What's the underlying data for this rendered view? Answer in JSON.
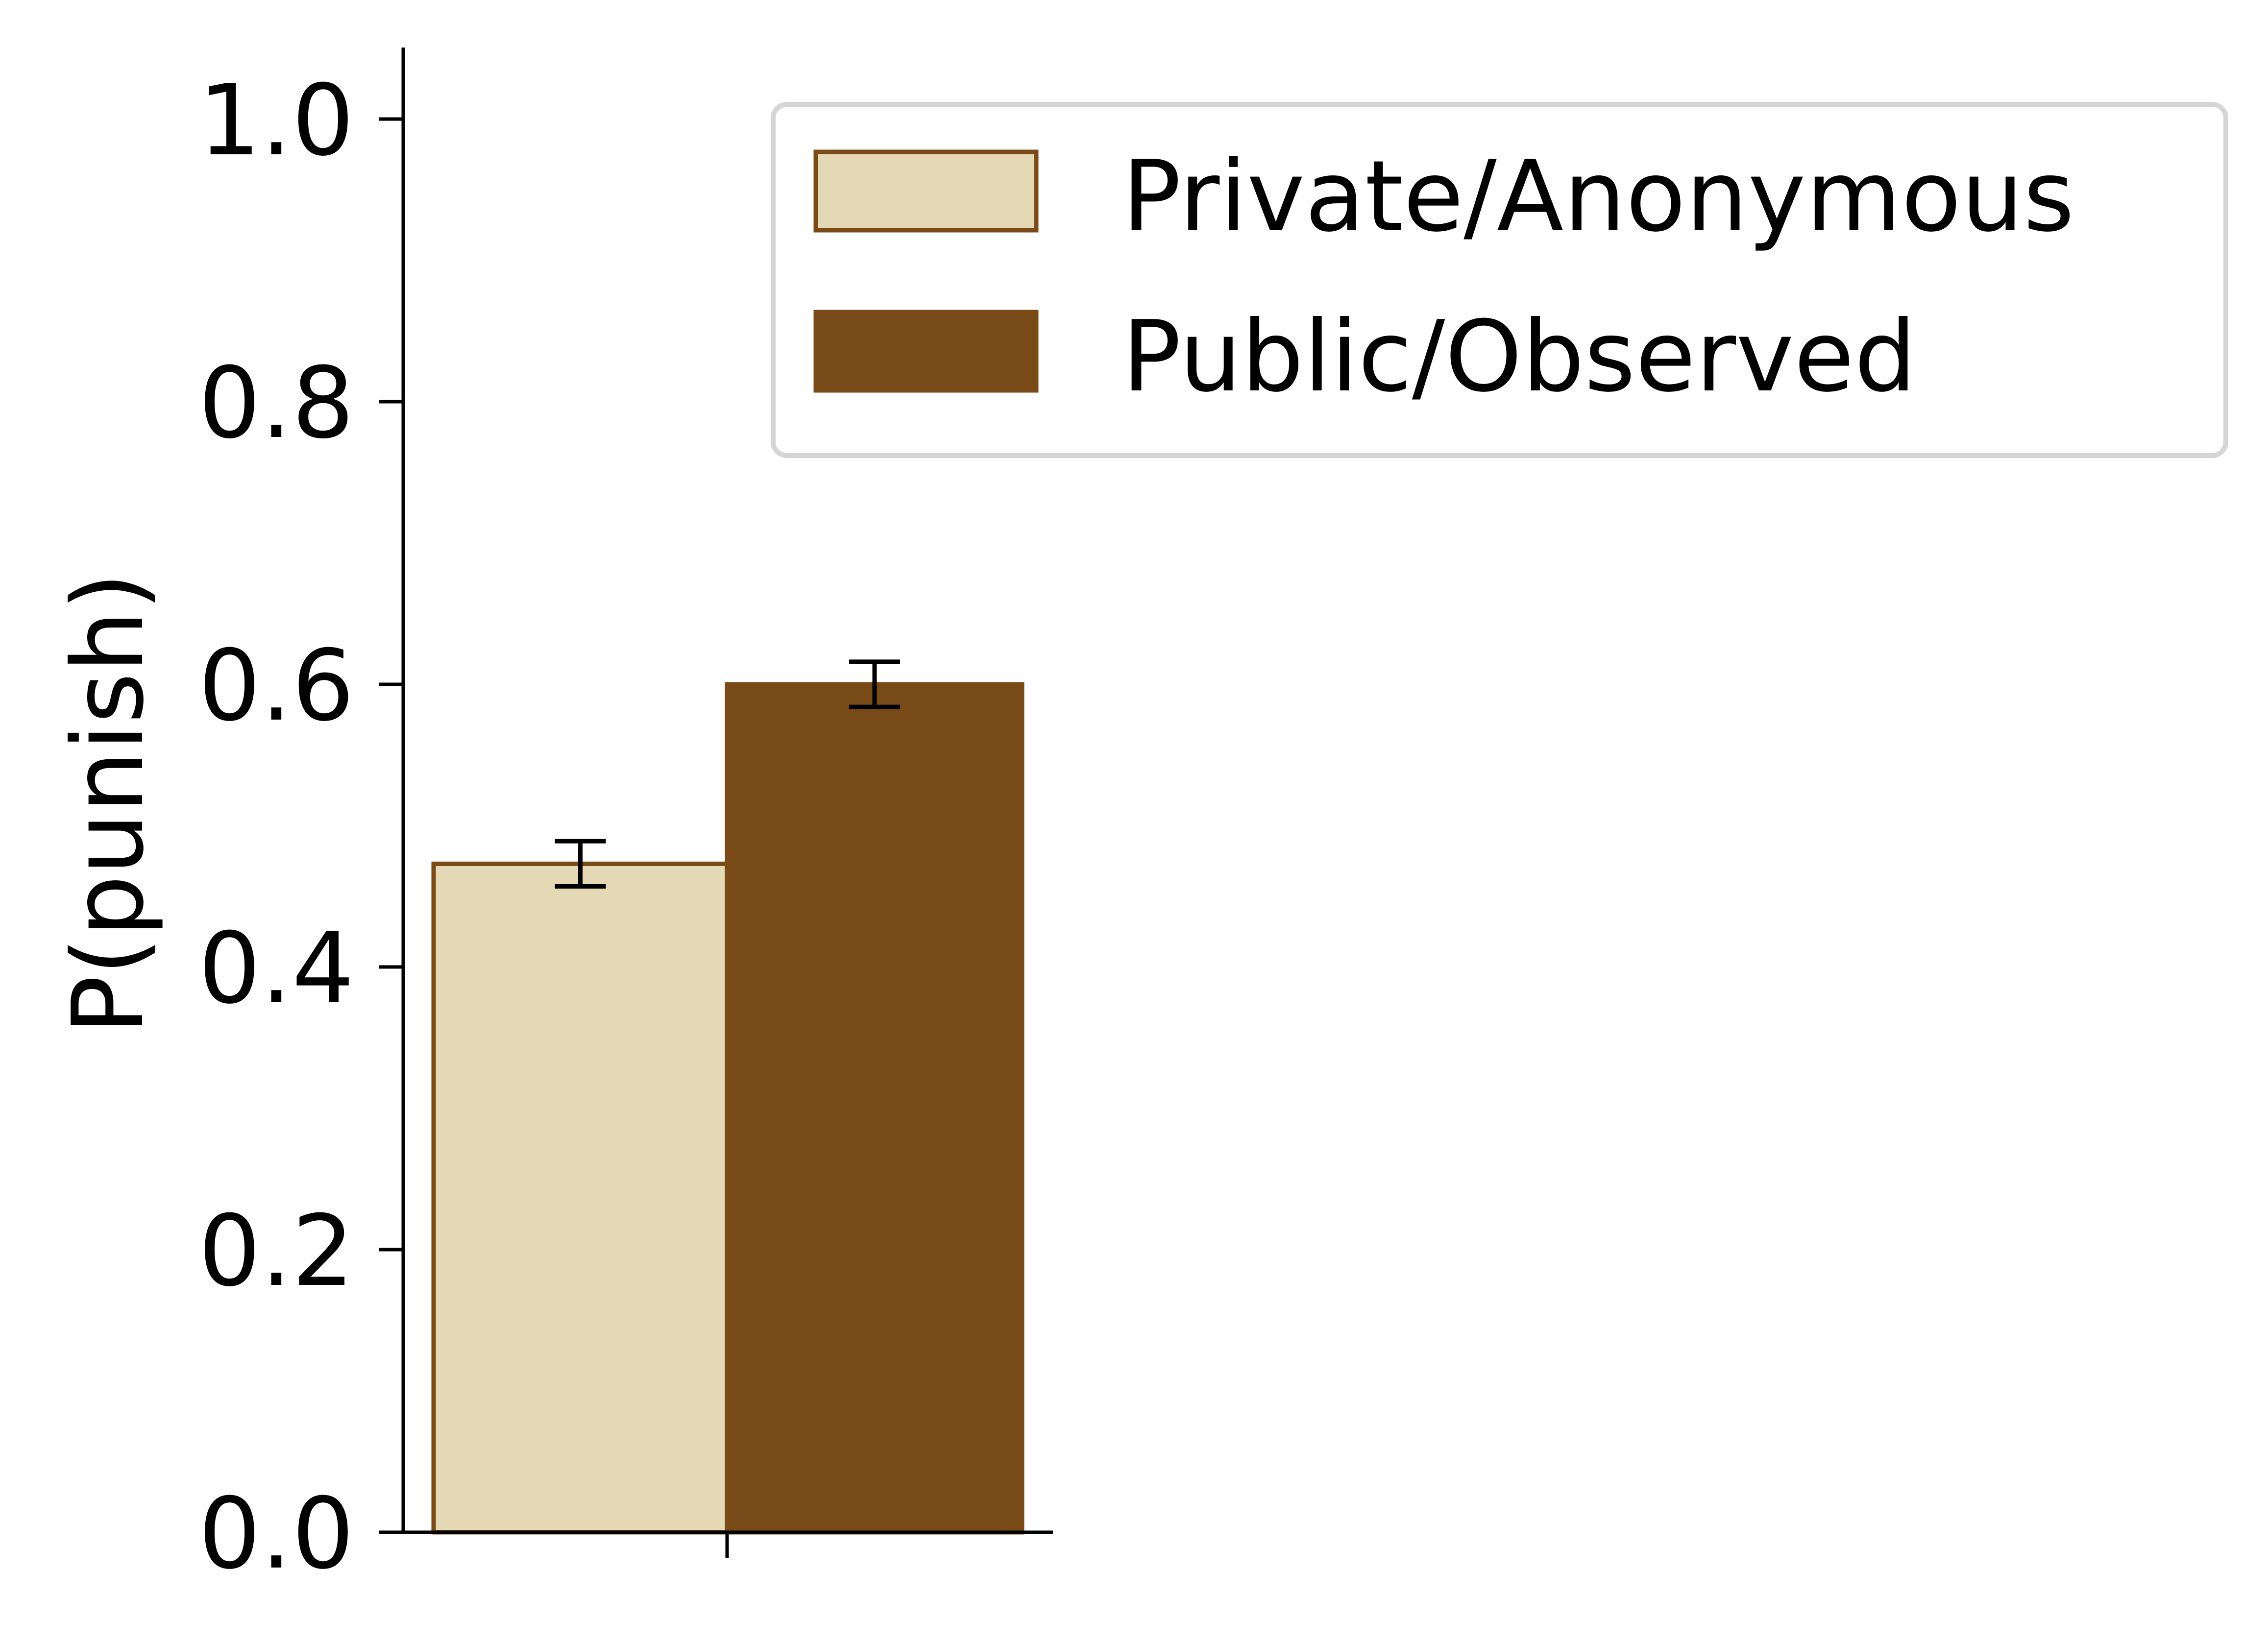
{
  "chart_data": {
    "type": "bar",
    "title": "",
    "xlabel": "",
    "ylabel": "P(punish)",
    "categories": [
      ""
    ],
    "series": [
      {
        "name": "Private/Anonymous",
        "values": [
          0.473
        ],
        "error": [
          0.016
        ],
        "color": "#e5d8b5",
        "edge_color": "#7a4b17"
      },
      {
        "name": "Public/Observed",
        "values": [
          0.6
        ],
        "error": [
          0.016
        ],
        "color": "#774a18",
        "edge_color": "#7a4b17"
      }
    ],
    "ylim": [
      0,
      1.05
    ],
    "yticks": [
      0.0,
      0.2,
      0.4,
      0.6,
      0.8,
      1.0
    ],
    "ytick_labels": [
      "0.0",
      "0.2",
      "0.4",
      "0.6",
      "0.8",
      "1.0"
    ],
    "grid": false,
    "legend": {
      "position": "top-right",
      "frame_color": "#d5d5d5"
    }
  }
}
